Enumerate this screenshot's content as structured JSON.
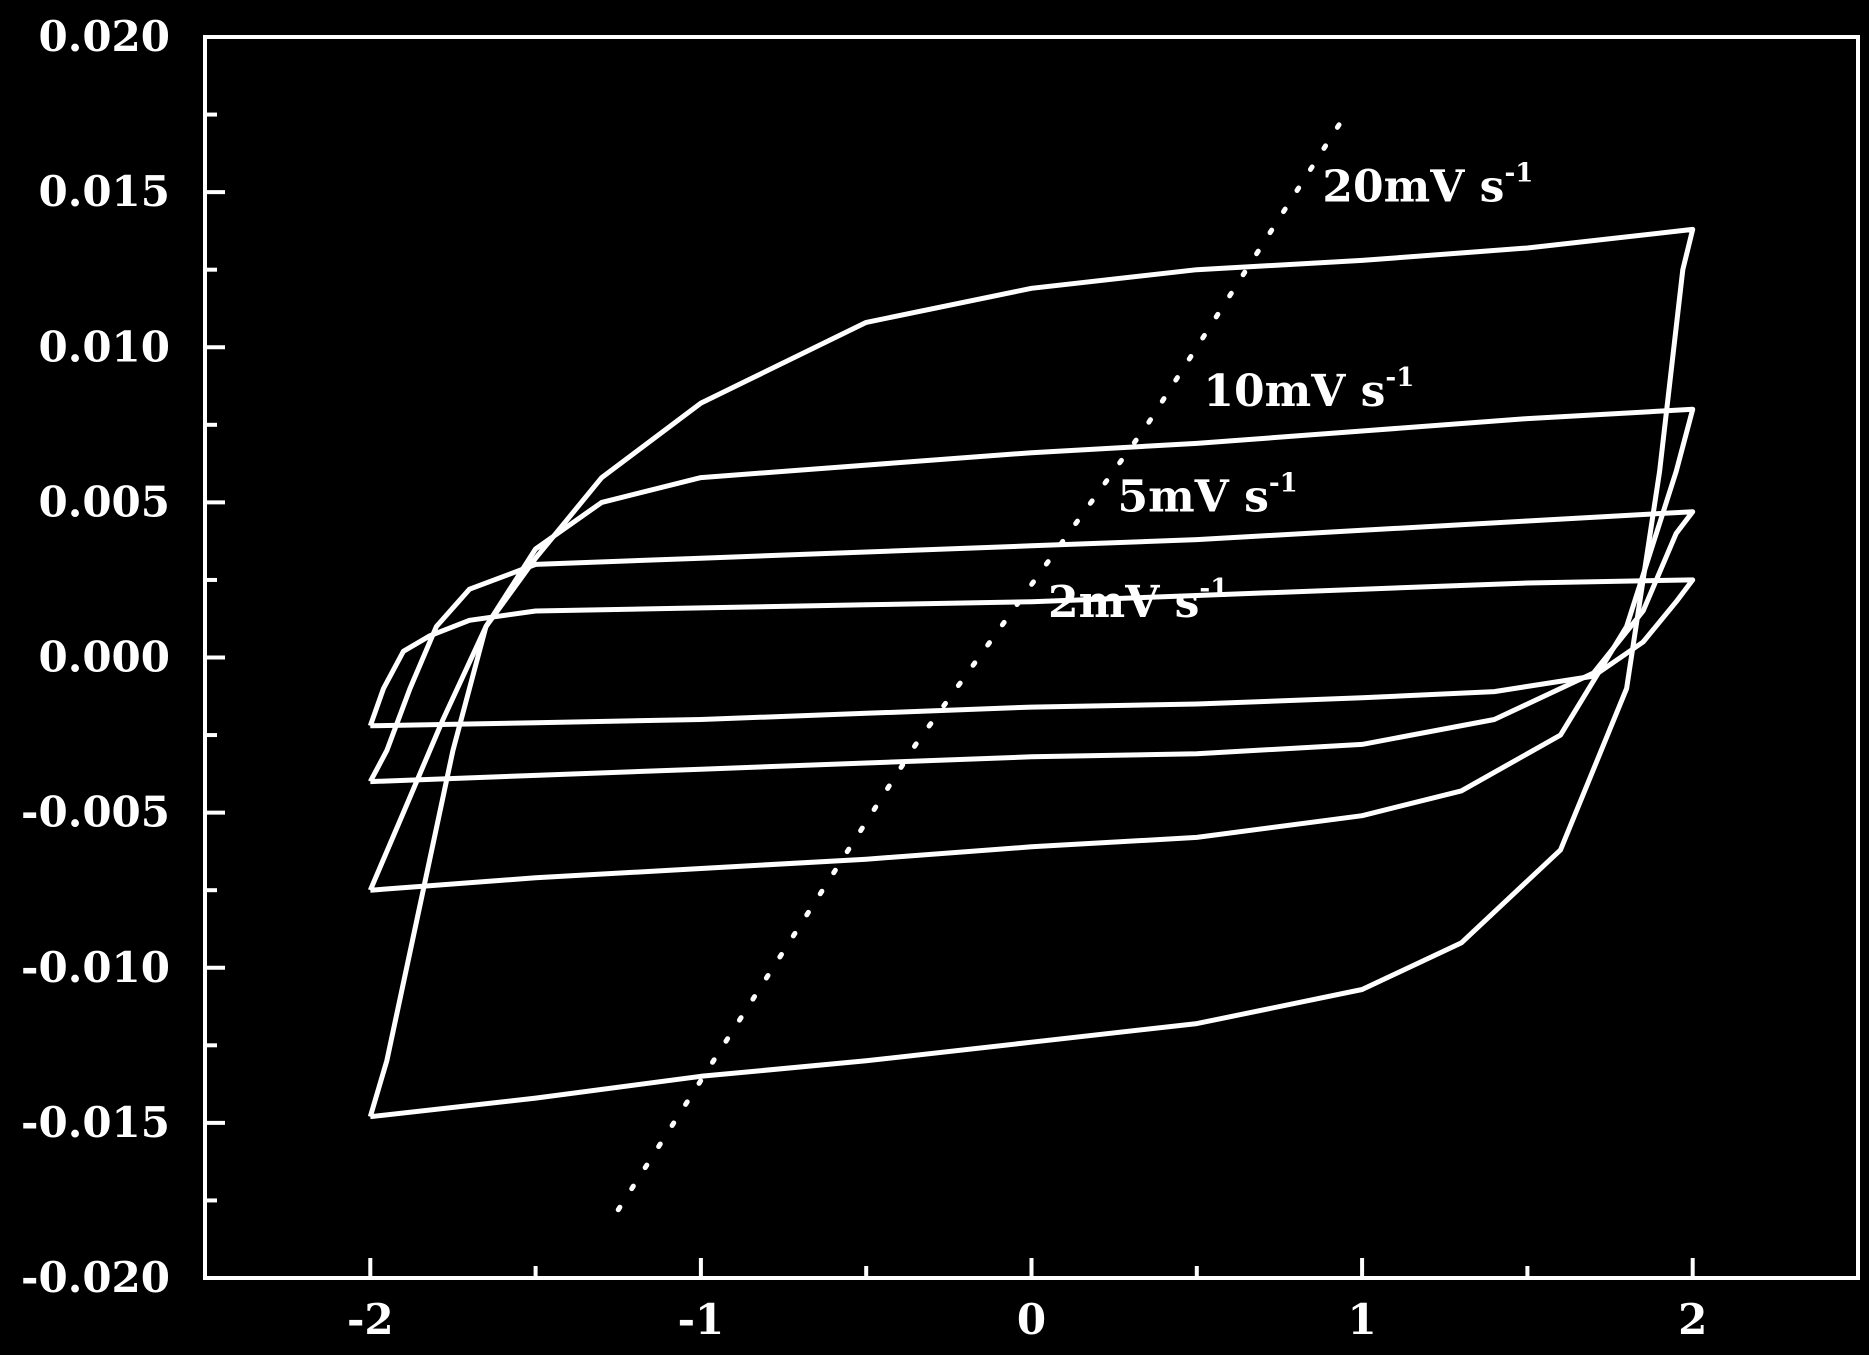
{
  "chart_data": {
    "type": "line",
    "title": "",
    "xlabel": "",
    "ylabel": "",
    "xlim": [
      -2.5,
      2.5
    ],
    "ylim": [
      -0.02,
      0.02
    ],
    "xticks": [
      -2,
      -1,
      0,
      1,
      2
    ],
    "xtick_labels": [
      "-2",
      "-1",
      "0",
      "1",
      "2"
    ],
    "yticks": [
      -0.02,
      -0.015,
      -0.01,
      -0.005,
      0.0,
      0.005,
      0.01,
      0.015,
      0.02
    ],
    "ytick_labels": [
      "-0.020",
      "-0.015",
      "-0.010",
      "-0.005",
      "0.000",
      "0.005",
      "0.010",
      "0.015",
      "0.020"
    ],
    "grid": false,
    "legend": "none",
    "colors": {
      "background": "#000000",
      "foreground": "#ffffff"
    },
    "series": [
      {
        "name": "20mV s-1",
        "label": {
          "main": "20mV s",
          "sup": "-1",
          "at": [
            0.88,
            0.0147
          ]
        },
        "values": [
          [
            -2.0,
            -0.0148
          ],
          [
            -1.5,
            -0.0142
          ],
          [
            -1.0,
            -0.0135
          ],
          [
            -0.5,
            -0.013
          ],
          [
            0.0,
            -0.0124
          ],
          [
            0.5,
            -0.0118
          ],
          [
            1.0,
            -0.0107
          ],
          [
            1.3,
            -0.0092
          ],
          [
            1.6,
            -0.0062
          ],
          [
            1.8,
            -0.001
          ],
          [
            1.9,
            0.006
          ],
          [
            1.97,
            0.0125
          ],
          [
            2.0,
            0.0138
          ],
          [
            1.5,
            0.0132
          ],
          [
            1.0,
            0.0128
          ],
          [
            0.5,
            0.0125
          ],
          [
            0.0,
            0.0119
          ],
          [
            -0.5,
            0.0108
          ],
          [
            -1.0,
            0.0082
          ],
          [
            -1.3,
            0.0058
          ],
          [
            -1.5,
            0.0032
          ],
          [
            -1.65,
            0.001
          ],
          [
            -1.75,
            -0.003
          ],
          [
            -1.85,
            -0.008
          ],
          [
            -1.95,
            -0.013
          ],
          [
            -2.0,
            -0.0148
          ]
        ]
      },
      {
        "name": "10mV s-1",
        "label": {
          "main": "10mV s",
          "sup": "-1",
          "at": [
            0.52,
            0.0081
          ]
        },
        "values": [
          [
            -2.0,
            -0.0075
          ],
          [
            -1.5,
            -0.0071
          ],
          [
            -1.0,
            -0.0068
          ],
          [
            -0.5,
            -0.0065
          ],
          [
            0.0,
            -0.0061
          ],
          [
            0.5,
            -0.0058
          ],
          [
            1.0,
            -0.0051
          ],
          [
            1.3,
            -0.0043
          ],
          [
            1.6,
            -0.0025
          ],
          [
            1.8,
            0.001
          ],
          [
            1.95,
            0.006
          ],
          [
            2.0,
            0.008
          ],
          [
            1.5,
            0.0077
          ],
          [
            1.0,
            0.0073
          ],
          [
            0.5,
            0.0069
          ],
          [
            0.0,
            0.0066
          ],
          [
            -0.5,
            0.0062
          ],
          [
            -1.0,
            0.0058
          ],
          [
            -1.3,
            0.005
          ],
          [
            -1.5,
            0.0035
          ],
          [
            -1.65,
            0.001
          ],
          [
            -1.78,
            -0.002
          ],
          [
            -1.9,
            -0.005
          ],
          [
            -2.0,
            -0.0075
          ]
        ]
      },
      {
        "name": "5mV s-1",
        "label": {
          "main": "5mV s",
          "sup": "-1",
          "at": [
            0.26,
            0.0047
          ]
        },
        "values": [
          [
            -2.0,
            -0.004
          ],
          [
            -1.5,
            -0.0038
          ],
          [
            -1.0,
            -0.0036
          ],
          [
            -0.5,
            -0.0034
          ],
          [
            0.0,
            -0.0032
          ],
          [
            0.5,
            -0.0031
          ],
          [
            1.0,
            -0.0028
          ],
          [
            1.4,
            -0.002
          ],
          [
            1.7,
            -0.0005
          ],
          [
            1.85,
            0.0015
          ],
          [
            1.95,
            0.004
          ],
          [
            2.0,
            0.0047
          ],
          [
            1.5,
            0.0044
          ],
          [
            1.0,
            0.0041
          ],
          [
            0.5,
            0.0038
          ],
          [
            0.0,
            0.0036
          ],
          [
            -0.5,
            0.0034
          ],
          [
            -1.0,
            0.0032
          ],
          [
            -1.5,
            0.003
          ],
          [
            -1.7,
            0.0022
          ],
          [
            -1.8,
            0.001
          ],
          [
            -1.88,
            -0.001
          ],
          [
            -1.95,
            -0.003
          ],
          [
            -2.0,
            -0.004
          ]
        ]
      },
      {
        "name": "2mV s-1",
        "label": {
          "main": "2mV s",
          "sup": "-1",
          "at": [
            0.05,
            0.0013
          ]
        },
        "values": [
          [
            -2.0,
            -0.0022
          ],
          [
            -1.5,
            -0.0021
          ],
          [
            -1.0,
            -0.002
          ],
          [
            -0.5,
            -0.0018
          ],
          [
            0.0,
            -0.0016
          ],
          [
            0.5,
            -0.0015
          ],
          [
            1.0,
            -0.0013
          ],
          [
            1.4,
            -0.0011
          ],
          [
            1.7,
            -0.0006
          ],
          [
            1.85,
            0.0005
          ],
          [
            1.95,
            0.0018
          ],
          [
            2.0,
            0.0025
          ],
          [
            1.5,
            0.0024
          ],
          [
            1.0,
            0.0022
          ],
          [
            0.5,
            0.002
          ],
          [
            0.0,
            0.0018
          ],
          [
            -0.5,
            0.0017
          ],
          [
            -1.0,
            0.0016
          ],
          [
            -1.5,
            0.0015
          ],
          [
            -1.7,
            0.0012
          ],
          [
            -1.82,
            0.0007
          ],
          [
            -1.9,
            0.0002
          ],
          [
            -1.96,
            -0.001
          ],
          [
            -2.0,
            -0.0022
          ]
        ]
      }
    ],
    "dotted_trend": {
      "values": [
        [
          -1.25,
          -0.0178
        ],
        [
          -0.35,
          -0.0028
        ],
        [
          0.35,
          0.0075
        ],
        [
          0.95,
          0.0175
        ]
      ]
    }
  }
}
